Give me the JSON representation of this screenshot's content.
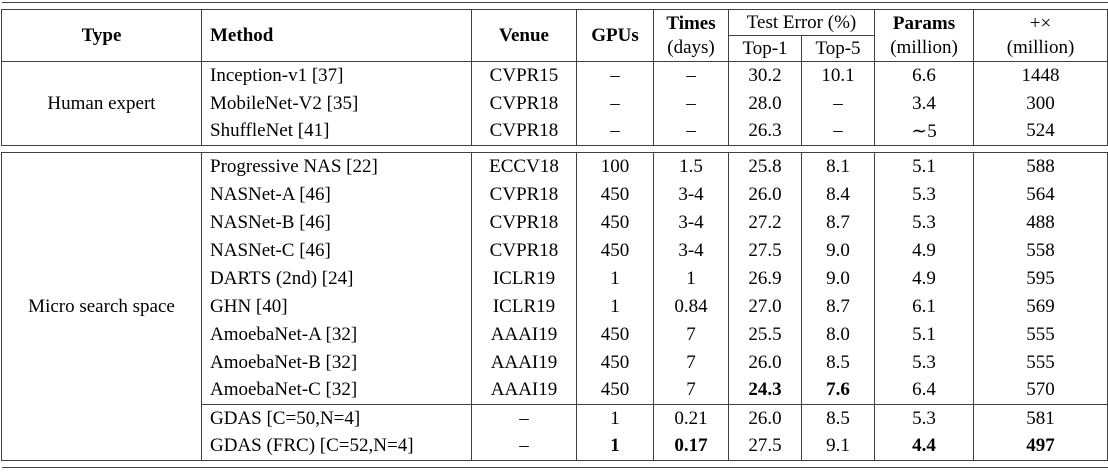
{
  "table": {
    "header": {
      "type": "Type",
      "method": "Method",
      "venue": "Venue",
      "gpus": "GPUs",
      "times_line1": "Times",
      "times_line2": "(days)",
      "test_error": "Test Error (%)",
      "top1": "Top-1",
      "top5": "Top-5",
      "params_line1": "Params",
      "params_line2": "(million)",
      "flops_line1": "+×",
      "flops_line2": "(million)"
    },
    "row_keys": [
      "method",
      "venue",
      "gpus",
      "times",
      "top1",
      "top5",
      "params",
      "flops"
    ],
    "sections": [
      {
        "type_label": "Human expert",
        "groups": [
          [
            {
              "method": "Inception-v1 [37]",
              "venue": "CVPR15",
              "gpus": "–",
              "times": "–",
              "top1": "30.2",
              "top5": "10.1",
              "params": "6.6",
              "flops": "1448",
              "bold": []
            },
            {
              "method": "MobileNet-V2 [35]",
              "venue": "CVPR18",
              "gpus": "–",
              "times": "–",
              "top1": "28.0",
              "top5": "–",
              "params": "3.4",
              "flops": "300",
              "bold": []
            },
            {
              "method": "ShuffleNet [41]",
              "venue": "CVPR18",
              "gpus": "–",
              "times": "–",
              "top1": "26.3",
              "top5": "–",
              "params": "∼5",
              "flops": "524",
              "bold": []
            }
          ]
        ]
      },
      {
        "type_label": "Micro search space",
        "groups": [
          [
            {
              "method": "Progressive NAS [22]",
              "venue": "ECCV18",
              "gpus": "100",
              "times": "1.5",
              "top1": "25.8",
              "top5": "8.1",
              "params": "5.1",
              "flops": "588",
              "bold": []
            },
            {
              "method": "NASNet-A [46]",
              "venue": "CVPR18",
              "gpus": "450",
              "times": "3-4",
              "top1": "26.0",
              "top5": "8.4",
              "params": "5.3",
              "flops": "564",
              "bold": []
            },
            {
              "method": "NASNet-B [46]",
              "venue": "CVPR18",
              "gpus": "450",
              "times": "3-4",
              "top1": "27.2",
              "top5": "8.7",
              "params": "5.3",
              "flops": "488",
              "bold": []
            },
            {
              "method": "NASNet-C [46]",
              "venue": "CVPR18",
              "gpus": "450",
              "times": "3-4",
              "top1": "27.5",
              "top5": "9.0",
              "params": "4.9",
              "flops": "558",
              "bold": []
            },
            {
              "method": "DARTS (2nd) [24]",
              "venue": "ICLR19",
              "gpus": "1",
              "times": "1",
              "top1": "26.9",
              "top5": "9.0",
              "params": "4.9",
              "flops": "595",
              "bold": []
            },
            {
              "method": "GHN [40]",
              "venue": "ICLR19",
              "gpus": "1",
              "times": "0.84",
              "top1": "27.0",
              "top5": "8.7",
              "params": "6.1",
              "flops": "569",
              "bold": []
            },
            {
              "method": "AmoebaNet-A [32]",
              "venue": "AAAI19",
              "gpus": "450",
              "times": "7",
              "top1": "25.5",
              "top5": "8.0",
              "params": "5.1",
              "flops": "555",
              "bold": []
            },
            {
              "method": "AmoebaNet-B [32]",
              "venue": "AAAI19",
              "gpus": "450",
              "times": "7",
              "top1": "26.0",
              "top5": "8.5",
              "params": "5.3",
              "flops": "555",
              "bold": []
            },
            {
              "method": "AmoebaNet-C [32]",
              "venue": "AAAI19",
              "gpus": "450",
              "times": "7",
              "top1": "24.3",
              "top5": "7.6",
              "params": "6.4",
              "flops": "570",
              "bold": [
                "top1",
                "top5"
              ]
            }
          ],
          [
            {
              "method": "GDAS [C=50,N=4]",
              "venue": "–",
              "gpus": "1",
              "times": "0.21",
              "top1": "26.0",
              "top5": "8.5",
              "params": "5.3",
              "flops": "581",
              "bold": []
            },
            {
              "method": "GDAS (FRC) [C=52,N=4]",
              "venue": "–",
              "gpus": "1",
              "times": "0.17",
              "top1": "27.5",
              "top5": "9.1",
              "params": "4.4",
              "flops": "497",
              "bold": [
                "gpus",
                "times",
                "params",
                "flops"
              ]
            }
          ]
        ]
      }
    ]
  }
}
